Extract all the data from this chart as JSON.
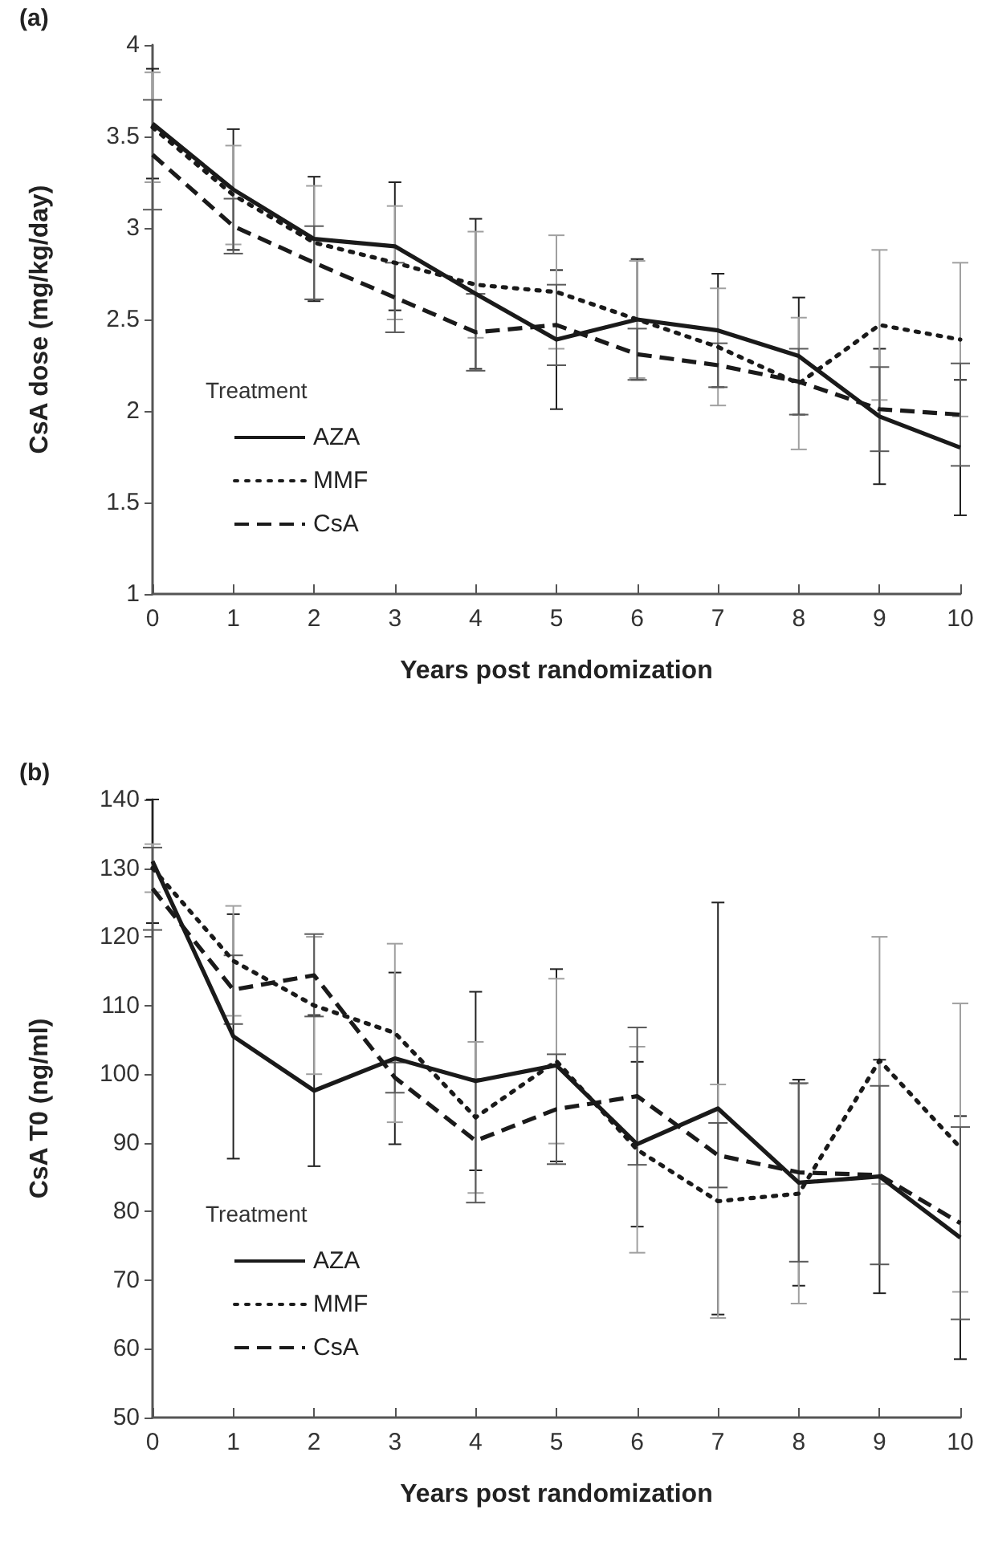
{
  "chart_data": [
    {
      "type": "line",
      "title": "(a)",
      "xlabel": "Years post randomization",
      "ylabel": "CsA dose (mg/kg/day)",
      "legend_title": "Treatment",
      "legend": "bottom left",
      "marker": "none",
      "grid": false,
      "x": [
        0,
        1,
        2,
        3,
        4,
        5,
        6,
        7,
        8,
        9,
        10
      ],
      "xlim": [
        0,
        10
      ],
      "xticks": [
        0,
        1,
        2,
        3,
        4,
        5,
        6,
        7,
        8,
        9,
        10
      ],
      "ylim": [
        1,
        4
      ],
      "yticks": [
        1,
        1.5,
        2,
        2.5,
        3,
        3.5,
        4
      ],
      "series": [
        {
          "name": "AZA",
          "color": "#1a1a1a",
          "line_style": "solid",
          "values": [
            3.57,
            3.21,
            2.94,
            2.9,
            2.64,
            2.39,
            2.5,
            2.44,
            2.3,
            1.97,
            1.8
          ],
          "errors": [
            0.3,
            0.33,
            0.34,
            0.35,
            0.41,
            0.38,
            0.33,
            0.31,
            0.32,
            0.37,
            0.37
          ]
        },
        {
          "name": "MMF",
          "color": "#1a1a1a",
          "line_style": "dotted",
          "values": [
            3.55,
            3.18,
            2.92,
            2.81,
            2.69,
            2.65,
            2.5,
            2.35,
            2.15,
            2.47,
            2.39
          ],
          "errors": [
            0.3,
            0.27,
            0.31,
            0.31,
            0.29,
            0.31,
            0.32,
            0.32,
            0.36,
            0.41,
            0.42
          ]
        },
        {
          "name": "CsA",
          "color": "#1a1a1a",
          "line_style": "dashed",
          "values": [
            3.4,
            3.01,
            2.81,
            2.62,
            2.43,
            2.47,
            2.31,
            2.25,
            2.16,
            2.01,
            1.98
          ],
          "errors": [
            0.3,
            0.15,
            0.2,
            0.19,
            0.21,
            0.22,
            0.14,
            0.12,
            0.18,
            0.23,
            0.28
          ]
        }
      ]
    },
    {
      "type": "line",
      "title": "(b)",
      "xlabel": "Years post randomization",
      "ylabel": "CsA T0 (ng/ml)",
      "legend_title": "Treatment",
      "legend": "bottom left",
      "marker": "none",
      "grid": false,
      "x": [
        0,
        1,
        2,
        3,
        4,
        5,
        6,
        7,
        8,
        9,
        10
      ],
      "xlim": [
        0,
        10
      ],
      "xticks": [
        0,
        1,
        2,
        3,
        4,
        5,
        6,
        7,
        8,
        9,
        10
      ],
      "ylim": [
        50,
        140
      ],
      "yticks": [
        50,
        60,
        70,
        80,
        90,
        100,
        110,
        120,
        130,
        140
      ],
      "series": [
        {
          "name": "AZA",
          "color": "#1a1a1a",
          "line_style": "solid",
          "values": [
            131,
            105.5,
            97.6,
            102.3,
            99,
            101.3,
            89.8,
            95,
            84.2,
            85.1,
            76.2
          ],
          "errors": [
            9,
            17.8,
            11,
            12.5,
            13,
            14,
            12,
            30,
            15,
            17,
            17.7
          ]
        },
        {
          "name": "MMF",
          "color": "#1a1a1a",
          "line_style": "dotted",
          "values": [
            130,
            116.5,
            110,
            106,
            93.7,
            101.9,
            89,
            81.5,
            82.6,
            102,
            89.3
          ],
          "errors": [
            3.5,
            8,
            10,
            13,
            11,
            12,
            15,
            17,
            16,
            18,
            21
          ]
        },
        {
          "name": "CsA",
          "color": "#1a1a1a",
          "line_style": "dashed",
          "values": [
            127,
            112.3,
            114.4,
            99.5,
            90.3,
            94.9,
            96.8,
            88.2,
            85.7,
            85.3,
            78.3
          ],
          "errors": [
            6,
            5,
            6,
            2.2,
            9,
            8,
            10,
            4.7,
            13,
            13,
            14
          ]
        }
      ]
    }
  ]
}
